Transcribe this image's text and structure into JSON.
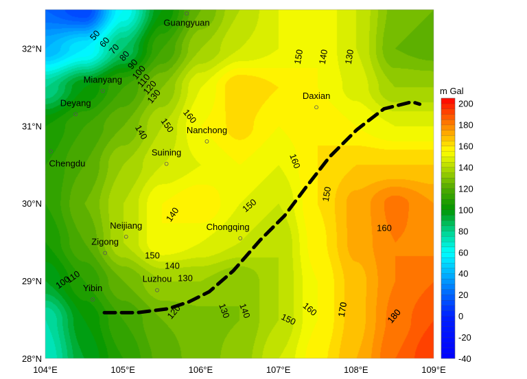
{
  "chart_data": {
    "type": "heatmap",
    "subtype": "filled-contour map",
    "unit": "m Gal",
    "contour_interval": 5,
    "lon": [
      104,
      104.5,
      105,
      105.5,
      106,
      106.5,
      107,
      107.5,
      108,
      108.5,
      109
    ],
    "lat": [
      32.5,
      32,
      31.5,
      31,
      30.5,
      30,
      29.5,
      29,
      28.5,
      28
    ],
    "values": [
      [
        20,
        10,
        60,
        100,
        125,
        140,
        150,
        155,
        145,
        128,
        125
      ],
      [
        40,
        55,
        85,
        115,
        135,
        145,
        150,
        155,
        145,
        125,
        122
      ],
      [
        80,
        100,
        115,
        130,
        150,
        165,
        160,
        155,
        148,
        135,
        135
      ],
      [
        105,
        115,
        125,
        140,
        155,
        162,
        155,
        160,
        155,
        150,
        150
      ],
      [
        110,
        120,
        135,
        145,
        150,
        155,
        150,
        160,
        165,
        165,
        165
      ],
      [
        110,
        125,
        140,
        155,
        160,
        150,
        145,
        160,
        172,
        182,
        175
      ],
      [
        105,
        120,
        140,
        155,
        150,
        145,
        140,
        158,
        172,
        180,
        178
      ],
      [
        95,
        110,
        125,
        135,
        135,
        130,
        140,
        155,
        168,
        180,
        185
      ],
      [
        75,
        100,
        115,
        125,
        128,
        130,
        140,
        155,
        168,
        182,
        190
      ],
      [
        70,
        95,
        110,
        122,
        128,
        132,
        145,
        158,
        170,
        185,
        195
      ]
    ],
    "x_ticks": [
      "104°E",
      "105°E",
      "106°E",
      "107°E",
      "108°E",
      "109°E"
    ],
    "y_ticks": [
      "28°N",
      "29°N",
      "30°N",
      "31°N",
      "32°N"
    ],
    "xlim": [
      104,
      109
    ],
    "ylim": [
      28,
      32.5
    ],
    "colorbar": {
      "title": "m Gal",
      "ticks": [
        "200",
        "180",
        "160",
        "140",
        "120",
        "100",
        "80",
        "60",
        "40",
        "20",
        "0",
        "-20",
        "-40"
      ],
      "range": [
        -40,
        205
      ],
      "stops": [
        [
          -40,
          "#0000ff"
        ],
        [
          0,
          "#0020ff"
        ],
        [
          20,
          "#0064ff"
        ],
        [
          40,
          "#00b4ff"
        ],
        [
          60,
          "#00ffff"
        ],
        [
          80,
          "#00d28c"
        ],
        [
          100,
          "#009600"
        ],
        [
          120,
          "#50aa00"
        ],
        [
          140,
          "#b4dc00"
        ],
        [
          155,
          "#ffff00"
        ],
        [
          170,
          "#ffb400"
        ],
        [
          180,
          "#ff8200"
        ],
        [
          205,
          "#ff0000"
        ]
      ]
    },
    "contour_labels": [
      "50",
      "60",
      "70",
      "80",
      "90",
      "100",
      "110",
      "120",
      "130",
      "160",
      "150",
      "140",
      "150",
      "140",
      "130",
      "160",
      "150",
      "140",
      "150",
      "160",
      "170",
      "180",
      "150",
      "140",
      "130",
      "120",
      "130",
      "140",
      "150",
      "160",
      "170",
      "180",
      "110",
      "100"
    ],
    "cities": [
      {
        "name": "Guangyuan",
        "lon": 105.82,
        "lat": 32.45
      },
      {
        "name": "Mianyang",
        "lon": 104.74,
        "lat": 31.45
      },
      {
        "name": "Deyang",
        "lon": 104.39,
        "lat": 31.15
      },
      {
        "name": "Chengdu",
        "lon": 104.07,
        "lat": 30.67
      },
      {
        "name": "Suining",
        "lon": 105.56,
        "lat": 30.51
      },
      {
        "name": "Nanchong",
        "lon": 106.08,
        "lat": 30.8
      },
      {
        "name": "Daxian",
        "lon": 107.49,
        "lat": 31.24
      },
      {
        "name": "Neijiang",
        "lon": 105.04,
        "lat": 29.57
      },
      {
        "name": "Chongqing",
        "lon": 106.51,
        "lat": 29.55
      },
      {
        "name": "Zigong",
        "lon": 104.77,
        "lat": 29.36
      },
      {
        "name": "Luzhou",
        "lon": 105.44,
        "lat": 28.88
      },
      {
        "name": "Yibin",
        "lon": 104.61,
        "lat": 28.76
      }
    ],
    "dashed_line": [
      [
        104.76,
        28.59
      ],
      [
        105.18,
        28.59
      ],
      [
        105.58,
        28.64
      ],
      [
        105.85,
        28.73
      ],
      [
        106.11,
        28.86
      ],
      [
        106.42,
        29.13
      ],
      [
        106.77,
        29.53
      ],
      [
        107.08,
        29.84
      ],
      [
        107.35,
        30.2
      ],
      [
        107.66,
        30.6
      ],
      [
        108.01,
        30.95
      ],
      [
        108.36,
        31.22
      ],
      [
        108.72,
        31.31
      ],
      [
        108.82,
        31.28
      ]
    ]
  }
}
